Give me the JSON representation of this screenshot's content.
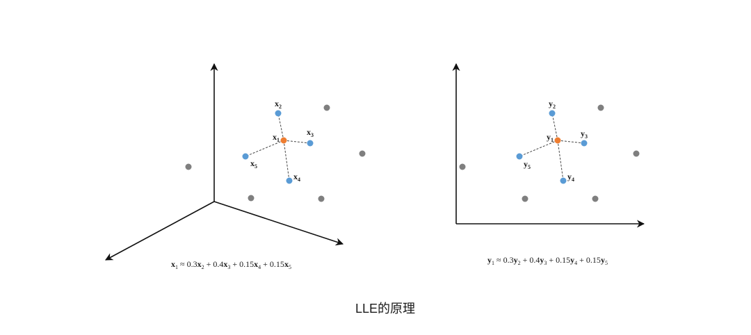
{
  "caption": "LLE的原理",
  "colors": {
    "center": "#ee7d31",
    "neighbor": "#5a9bd5",
    "other": "#7f7f7f",
    "axis": "#111111",
    "dash": "#444444"
  },
  "left_panel": {
    "var": "x",
    "labels": {
      "n1": "1",
      "n2": "2",
      "n3": "3",
      "n4": "4",
      "n5": "5"
    },
    "formula": {
      "lhs": "x",
      "lhs_sub": "1",
      "approx": " ≈ 0.3",
      "t2": "2",
      "plus_04": " + 0.4",
      "t3": "3",
      "plus_015a": " + 0.15",
      "t4": "4",
      "plus_015b": " + 0.15",
      "t5": "5"
    }
  },
  "right_panel": {
    "var": "y",
    "labels": {
      "n1": "1",
      "n2": "2",
      "n3": "3",
      "n4": "4",
      "n5": "5"
    },
    "formula": {
      "lhs": "y",
      "lhs_sub": "1",
      "approx": " ≈ 0.3",
      "t2": "2",
      "plus_04": " + 0.4",
      "t3": "3",
      "plus_015a": " + 0.15",
      "t4": "4",
      "plus_015b": " + 0.15",
      "t5": "5"
    }
  }
}
